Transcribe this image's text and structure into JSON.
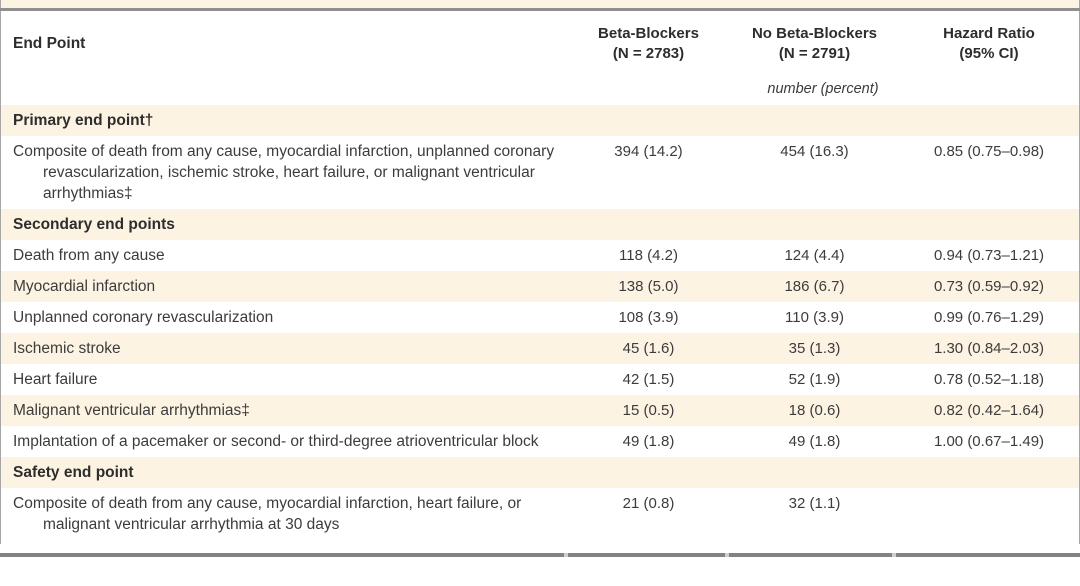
{
  "table": {
    "header": {
      "endpoint": "End Point",
      "beta": [
        "Beta-Blockers",
        "(N = 2783)"
      ],
      "no_beta": [
        "No Beta-Blockers",
        "(N = 2791)"
      ],
      "hazard": [
        "Hazard Ratio",
        "(95% CI)"
      ]
    },
    "subheader": "number (percent)",
    "rows": [
      {
        "type": "section",
        "label": "Primary end point†"
      },
      {
        "type": "data",
        "label": "Composite of death from any cause, myocardial infarction, unplanned coronary revascularization, ischemic stroke, heart failure, or malignant ventricular arrhythmias‡",
        "beta": "394 (14.2)",
        "no_beta": "454 (16.3)",
        "hazard": "0.85 (0.75–0.98)"
      },
      {
        "type": "section",
        "label": "Secondary end points"
      },
      {
        "type": "data",
        "label": "Death from any cause",
        "beta": "118 (4.2)",
        "no_beta": "124 (4.4)",
        "hazard": "0.94 (0.73–1.21)"
      },
      {
        "type": "data",
        "label": "Myocardial infarction",
        "beta": "138 (5.0)",
        "no_beta": "186 (6.7)",
        "hazard": "0.73 (0.59–0.92)"
      },
      {
        "type": "data",
        "label": "Unplanned coronary revascularization",
        "beta": "108 (3.9)",
        "no_beta": "110 (3.9)",
        "hazard": "0.99 (0.76–1.29)"
      },
      {
        "type": "data",
        "label": "Ischemic stroke",
        "beta": "45 (1.6)",
        "no_beta": "35 (1.3)",
        "hazard": "1.30 (0.84–2.03)"
      },
      {
        "type": "data",
        "label": "Heart failure",
        "beta": "42 (1.5)",
        "no_beta": "52 (1.9)",
        "hazard": "0.78 (0.52–1.18)"
      },
      {
        "type": "data",
        "label": "Malignant ventricular arrhythmias‡",
        "beta": "15 (0.5)",
        "no_beta": "18 (0.6)",
        "hazard": "0.82 (0.42–1.64)"
      },
      {
        "type": "data",
        "label": "Implantation of a pacemaker or second- or third-degree atrioventricular block",
        "beta": "49 (1.8)",
        "no_beta": "49 (1.8)",
        "hazard": "1.00 (0.67–1.49)"
      },
      {
        "type": "section",
        "label": "Safety end point"
      },
      {
        "type": "data",
        "label": "Composite of death from any cause, myocardial infarction, heart failure, or malignant ventricular arrhythmia at 30 days",
        "beta": "21 (0.8)",
        "no_beta": "32 (1.1)",
        "hazard": ""
      }
    ],
    "colors": {
      "stripe": "#fdf3e3",
      "rule_dark": "#828282",
      "rule_top": "#8e8e8e",
      "text": "#3c3c3c"
    }
  }
}
